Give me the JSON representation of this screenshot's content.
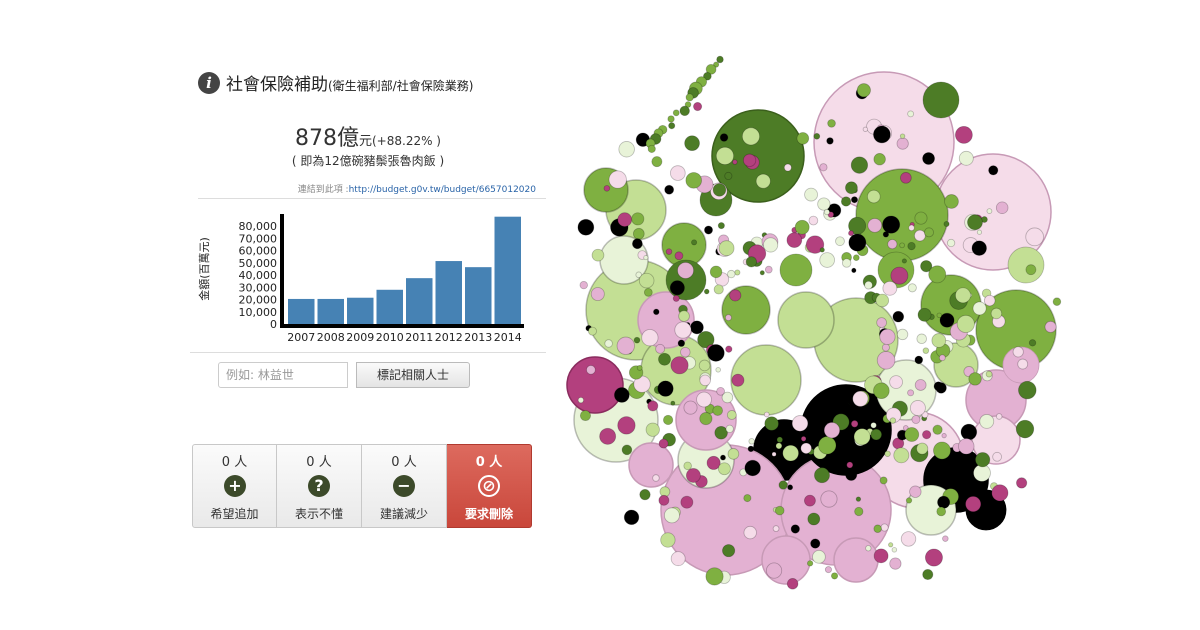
{
  "item": {
    "title": "社會保險補助",
    "subtitle": "(衛生福利部/社會保險業務)",
    "amount": "878億",
    "unit": "元",
    "change": "(+88.22% )",
    "equivalent": "( 即為12億碗豬鬃張魯肉飯 )",
    "link_label": "連結到此項 :",
    "link_url": "http://budget.g0v.tw/budget/6657012020"
  },
  "chart_data": {
    "type": "bar",
    "categories": [
      "2007",
      "2008",
      "2009",
      "2010",
      "2011",
      "2012",
      "2013",
      "2014"
    ],
    "values": [
      20500,
      20500,
      21500,
      28000,
      37500,
      51500,
      46500,
      87800
    ],
    "ylabel": "金額(百萬元)",
    "ylim": [
      0,
      90000
    ],
    "yticks": [
      "0",
      "10,000",
      "20,000",
      "30,000",
      "40,000",
      "50,000",
      "60,000",
      "70,000",
      "80,000"
    ],
    "bar_color": "#4682b4"
  },
  "tag": {
    "placeholder": "例如: 林益世",
    "button": "標記相關人士"
  },
  "votes": [
    {
      "count": "0 人",
      "icon": "plus-icon",
      "label": "希望追加"
    },
    {
      "count": "0 人",
      "icon": "question-icon",
      "label": "表示不懂"
    },
    {
      "count": "0 人",
      "icon": "minus-icon",
      "label": "建議減少"
    },
    {
      "count": "0 人",
      "icon": "ban-icon",
      "label": "要求刪除"
    }
  ],
  "colors": {
    "dark_green": "#4d7c26",
    "green": "#7fb041",
    "light_green": "#c3df94",
    "pale_green": "#e8f3d8",
    "pale_pink": "#f5dce9",
    "pink": "#e3b1d2",
    "magenta": "#b3407e",
    "black": "#000000",
    "danger": "#c9473b"
  }
}
